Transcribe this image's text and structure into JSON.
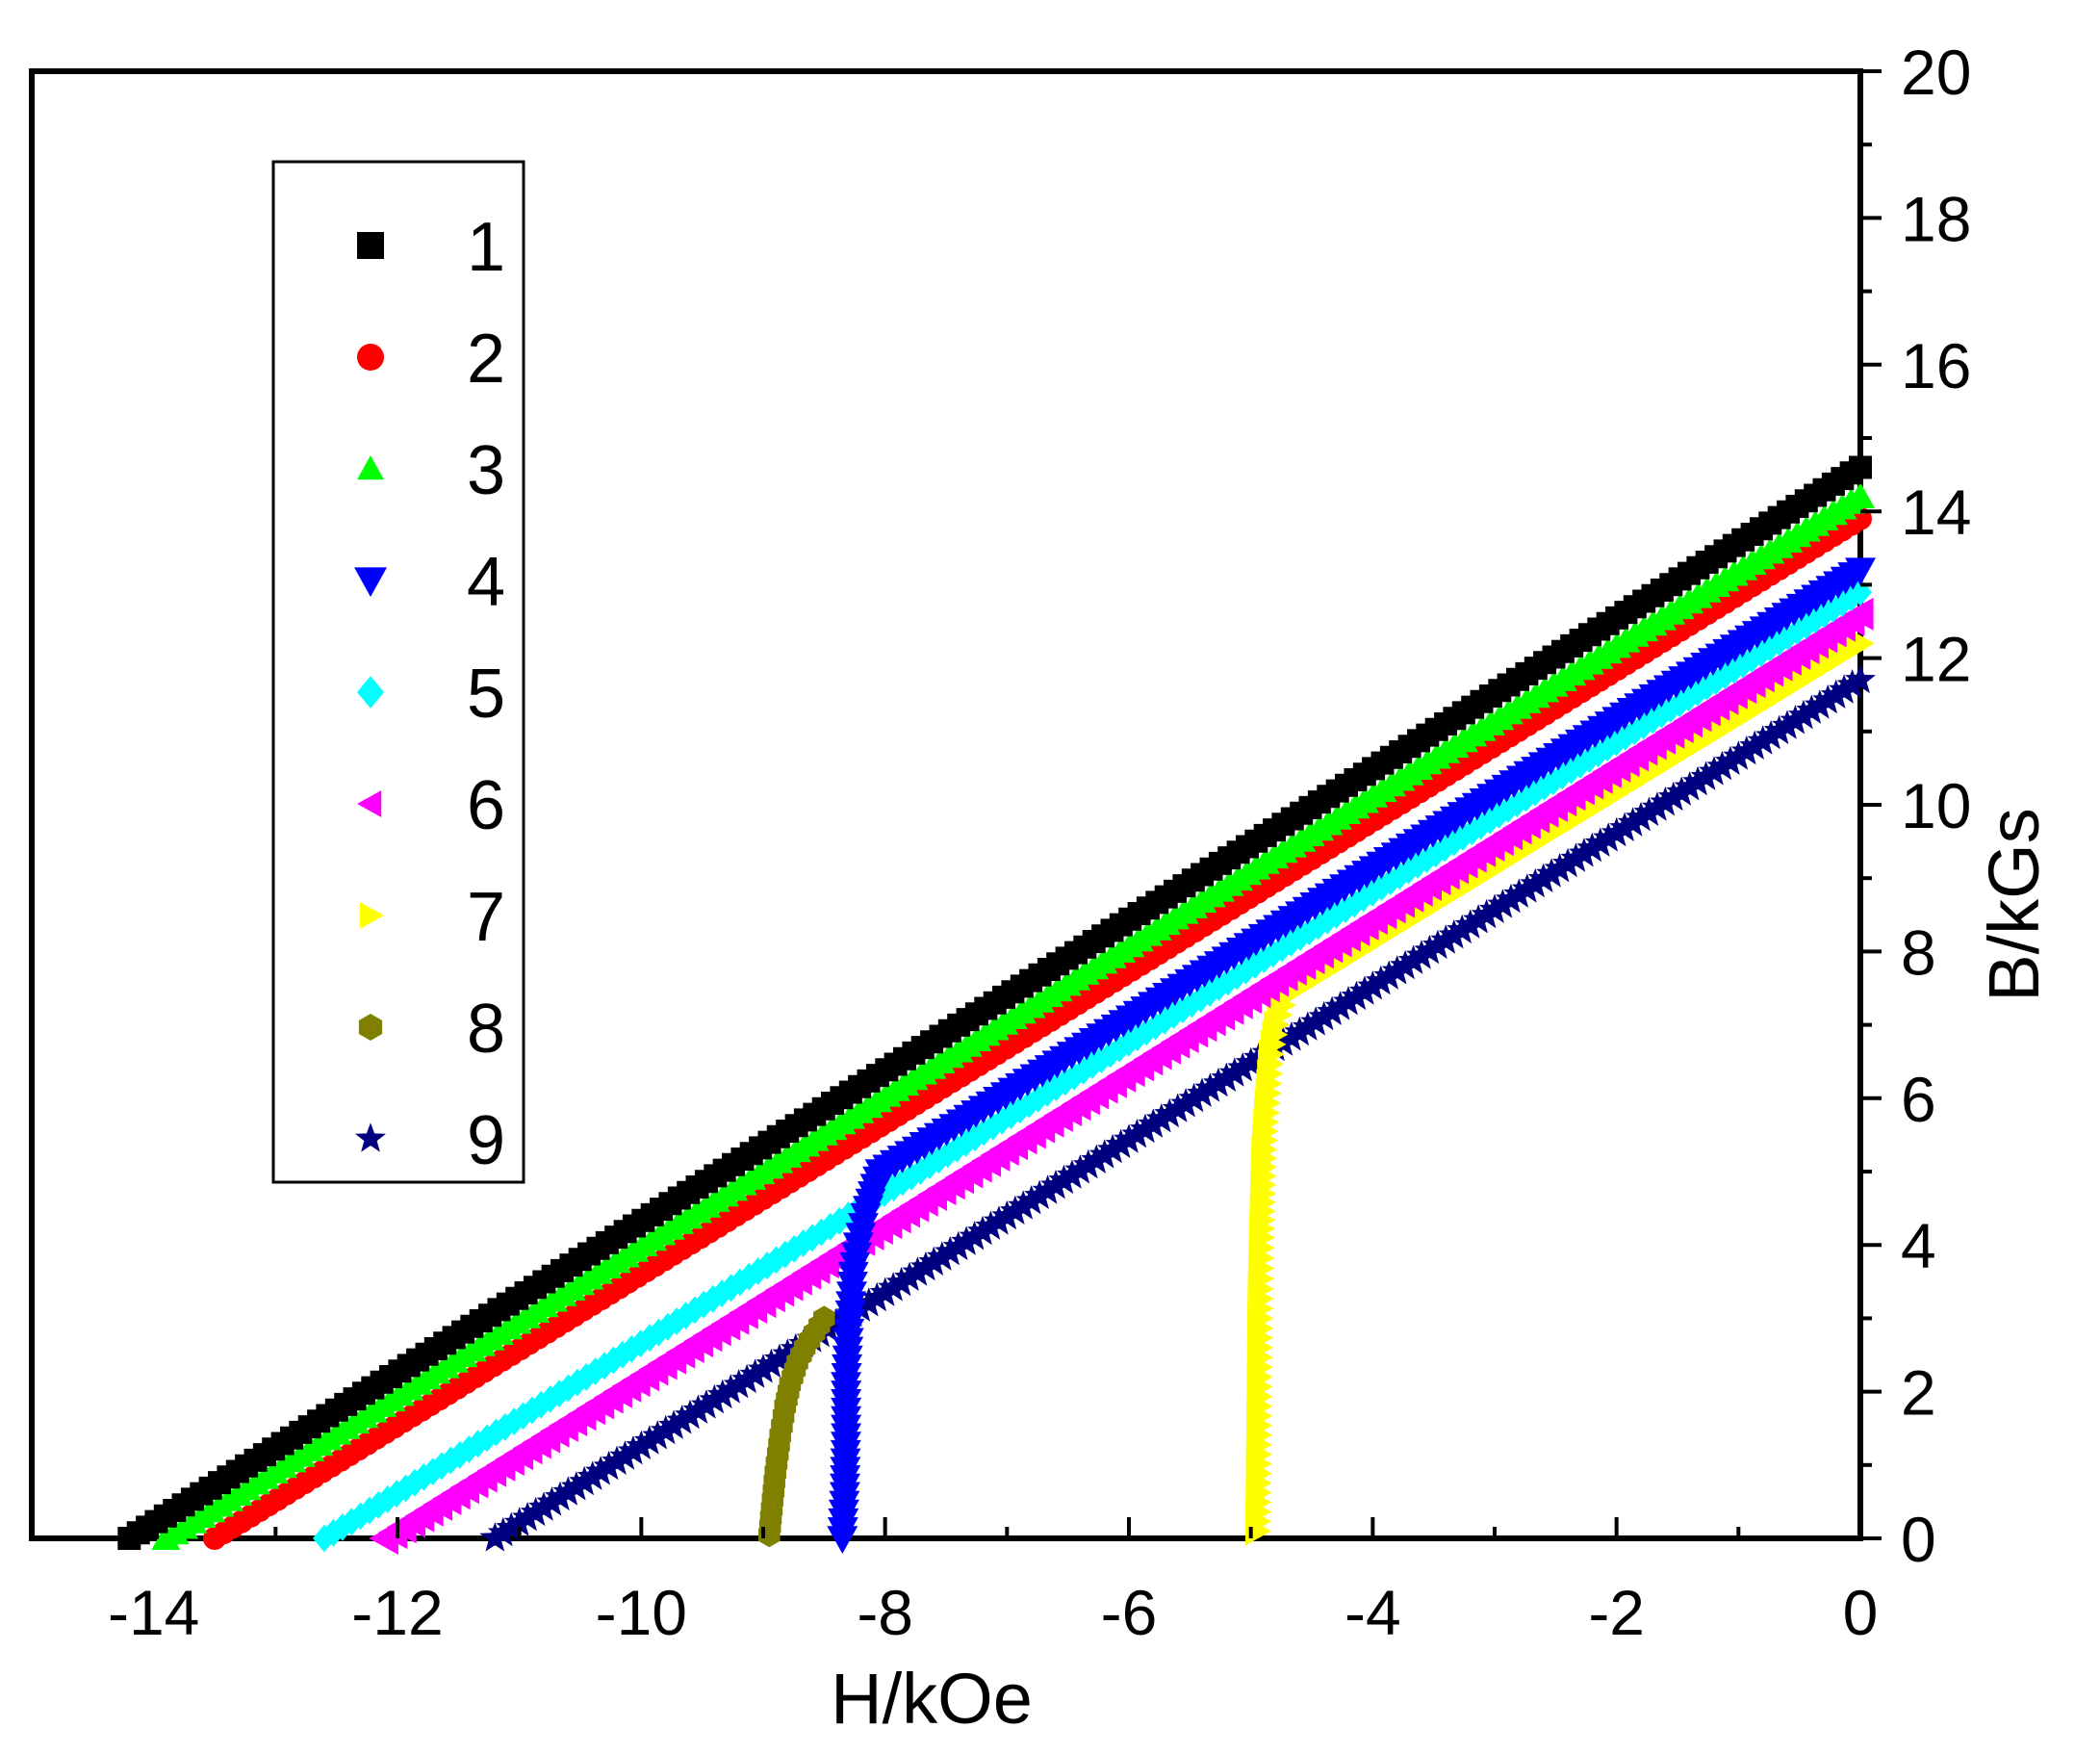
{
  "chart_data": {
    "type": "scatter",
    "title": "",
    "xlabel": "H/kOe",
    "ylabel": "B/kGs",
    "xlim": [
      -15,
      0
    ],
    "ylim": [
      0,
      20
    ],
    "xticks": [
      -14,
      -12,
      -10,
      -8,
      -6,
      -4,
      -2,
      0
    ],
    "yticks": [
      0,
      2,
      4,
      6,
      8,
      10,
      12,
      14,
      16,
      18,
      20
    ],
    "y_axis_side": "right",
    "grid": false,
    "legend_position": "top-left",
    "series": [
      {
        "name": "1",
        "marker": "square",
        "color": "#000000",
        "x": [
          -14.2,
          0
        ],
        "y": [
          0,
          14.6
        ]
      },
      {
        "name": "2",
        "marker": "circle",
        "color": "#ff0000",
        "x": [
          -13.5,
          0
        ],
        "y": [
          0,
          13.9
        ]
      },
      {
        "name": "3",
        "marker": "triangle-up",
        "color": "#00ff00",
        "x": [
          -13.9,
          0
        ],
        "y": [
          0,
          14.2
        ]
      },
      {
        "name": "4",
        "marker": "triangle-down",
        "color": "#0000ff",
        "x": [
          -8.35,
          -8.33,
          -8.32,
          -8.32,
          -8.3,
          -8.28,
          -8.26,
          -8.22,
          -8.16,
          -8.1,
          -8.04,
          0
        ],
        "y": [
          0,
          0.6,
          1.4,
          2.1,
          2.7,
          3.2,
          3.6,
          4.0,
          4.4,
          4.7,
          5.0,
          13.2
        ]
      },
      {
        "name": "5",
        "marker": "diamond",
        "color": "#00ffff",
        "x": [
          -12.6,
          0
        ],
        "y": [
          0,
          12.9
        ]
      },
      {
        "name": "6",
        "marker": "triangle-left",
        "color": "#ff00ff",
        "x": [
          -12.1,
          0
        ],
        "y": [
          0,
          12.6
        ]
      },
      {
        "name": "7",
        "marker": "triangle-right",
        "color": "#ffff00",
        "x": [
          -4.95,
          -4.94,
          -4.93,
          -4.92,
          -4.91,
          -4.9,
          -4.88,
          -4.86,
          -4.84,
          -4.8,
          -4.72,
          0
        ],
        "y": [
          0.1,
          1.8,
          3.4,
          4.1,
          4.7,
          5.3,
          5.8,
          6.2,
          6.6,
          7.0,
          7.4,
          12.2
        ]
      },
      {
        "name": "8",
        "marker": "hexagon",
        "color": "#808000",
        "x": [
          -8.95,
          -8.93,
          -8.9,
          -8.86,
          -8.82,
          -8.78,
          -8.72,
          -8.66,
          -8.58,
          -8.5
        ],
        "y": [
          0.05,
          0.4,
          0.9,
          1.4,
          1.8,
          2.1,
          2.4,
          2.6,
          2.8,
          3.0
        ]
      },
      {
        "name": "9",
        "marker": "star",
        "color": "#000080",
        "x": [
          -11.2,
          0
        ],
        "y": [
          0,
          11.7
        ]
      }
    ]
  }
}
